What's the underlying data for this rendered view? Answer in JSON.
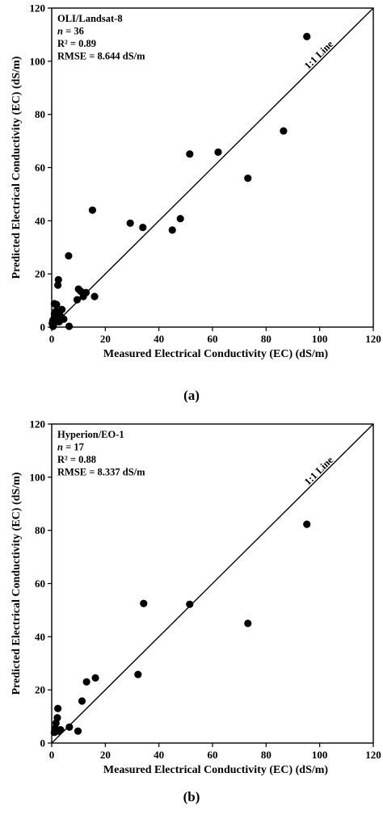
{
  "chart_data": [
    {
      "type": "scatter",
      "panel_label": "(a)",
      "annotation": {
        "dataset": "OLI/Landsat-8",
        "n_label": "n",
        "n_value": " = 36",
        "r2": "R² = 0.89",
        "rmse": "RMSE = 8.644 dS/m"
      },
      "xlabel": "Measured Electrical Conductivity (EC) (dS/m)",
      "ylabel": "Predicted Electrical Conductivity (EC) (dS/m)",
      "xlim": [
        0,
        120
      ],
      "ylim": [
        0,
        120
      ],
      "xticks": [
        0,
        20,
        40,
        60,
        80,
        100,
        120
      ],
      "yticks": [
        0,
        20,
        40,
        60,
        80,
        100,
        120
      ],
      "reference_line": {
        "label": "1:1 Line",
        "from": [
          0,
          0
        ],
        "to": [
          120,
          120
        ]
      },
      "points": [
        [
          95.2,
          109.3
        ],
        [
          86.5,
          73.8
        ],
        [
          73.2,
          56.0
        ],
        [
          62.1,
          65.8
        ],
        [
          51.5,
          65.1
        ],
        [
          48.0,
          40.8
        ],
        [
          45.0,
          36.5
        ],
        [
          34.0,
          37.5
        ],
        [
          29.3,
          39.1
        ],
        [
          15.2,
          44.0
        ],
        [
          16.0,
          11.5
        ],
        [
          6.3,
          26.8
        ],
        [
          12.8,
          13.0
        ],
        [
          11.8,
          11.5
        ],
        [
          10.8,
          13.5
        ],
        [
          10.0,
          14.3
        ],
        [
          9.5,
          10.3
        ],
        [
          6.5,
          0.3
        ],
        [
          4.5,
          3.0
        ],
        [
          3.8,
          6.6
        ],
        [
          3.0,
          4.5
        ],
        [
          2.5,
          17.8
        ],
        [
          2.3,
          15.8
        ],
        [
          1.8,
          8.5
        ],
        [
          1.6,
          6.0
        ],
        [
          1.4,
          4.0
        ],
        [
          1.2,
          2.6
        ],
        [
          1.0,
          5.0
        ],
        [
          0.9,
          1.5
        ],
        [
          0.8,
          3.2
        ],
        [
          0.6,
          0.8
        ],
        [
          0.4,
          2.4
        ],
        [
          1.0,
          8.8
        ],
        [
          0.5,
          0.3
        ],
        [
          2.8,
          2.0
        ],
        [
          0.2,
          1.4
        ]
      ]
    },
    {
      "type": "scatter",
      "panel_label": "(b)",
      "annotation": {
        "dataset": "Hyperion/EO-1",
        "n_label": "n",
        "n_value": " = 17",
        "r2": "R² = 0.88",
        "rmse": "RMSE = 8.337 dS/m"
      },
      "xlabel": "Measured Electrical Conductivity (EC) (dS/m)",
      "ylabel": "Predicted Electrical Conductivity (EC) (dS/m)",
      "xlim": [
        0,
        120
      ],
      "ylim": [
        0,
        120
      ],
      "xticks": [
        0,
        20,
        40,
        60,
        80,
        100,
        120
      ],
      "yticks": [
        0,
        20,
        40,
        60,
        80,
        100,
        120
      ],
      "reference_line": {
        "label": "1:1 Line",
        "from": [
          0,
          0
        ],
        "to": [
          120,
          120
        ]
      },
      "points": [
        [
          95.2,
          82.3
        ],
        [
          73.2,
          45.0
        ],
        [
          51.5,
          52.2
        ],
        [
          34.3,
          52.5
        ],
        [
          32.2,
          25.8
        ],
        [
          16.3,
          24.5
        ],
        [
          13.0,
          23.0
        ],
        [
          11.3,
          15.8
        ],
        [
          9.8,
          4.5
        ],
        [
          6.6,
          6.0
        ],
        [
          3.3,
          5.0
        ],
        [
          2.6,
          4.5
        ],
        [
          2.3,
          13.0
        ],
        [
          2.1,
          9.5
        ],
        [
          1.6,
          7.5
        ],
        [
          1.3,
          5.5
        ],
        [
          1.0,
          4.0
        ]
      ]
    }
  ]
}
